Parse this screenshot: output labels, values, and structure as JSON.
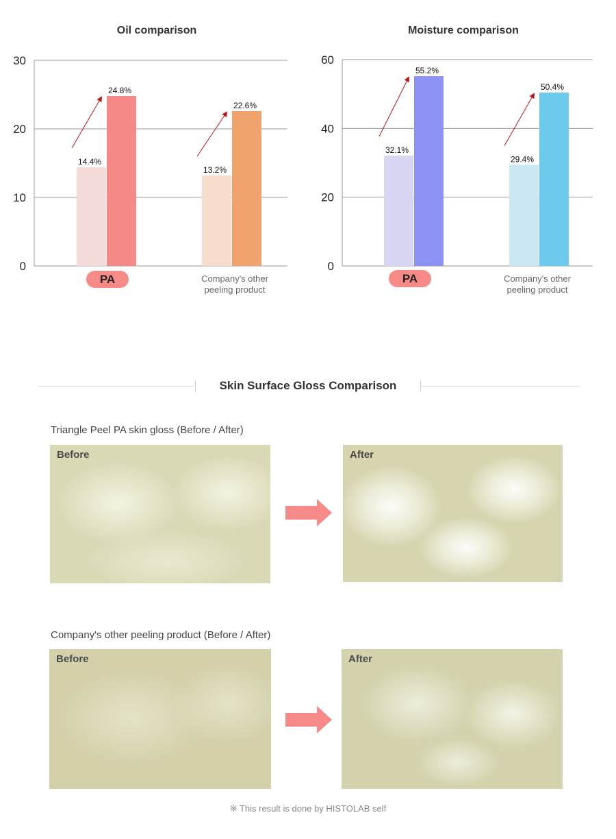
{
  "chart_data": [
    {
      "type": "bar",
      "title": "Oil comparison",
      "categories": [
        "PA",
        "Company's other peeling product"
      ],
      "category_display": [
        [
          "PA"
        ],
        [
          "Company's other",
          "peeling product"
        ]
      ],
      "series": [
        {
          "values": [
            14.4,
            13.2
          ],
          "colors": [
            "#f5dbd8",
            "#f8ddcd"
          ]
        },
        {
          "values": [
            24.8,
            22.6
          ],
          "colors": [
            "#f48a88",
            "#f0a36d"
          ]
        }
      ],
      "value_labels": [
        [
          "14.4%",
          "24.8%"
        ],
        [
          "13.2%",
          "22.6%"
        ]
      ],
      "yticks": [
        0,
        10,
        20,
        30
      ],
      "ylim": [
        0,
        30
      ],
      "grid": true,
      "arrow_color": "#c0141b"
    },
    {
      "type": "bar",
      "title": "Moisture comparison",
      "categories": [
        "PA",
        "Company's other peeling product"
      ],
      "category_display": [
        [
          "PA"
        ],
        [
          "Company's other",
          "peeling product"
        ]
      ],
      "series": [
        {
          "values": [
            32.1,
            29.4
          ],
          "colors": [
            "#d8d6f2",
            "#cce7f4"
          ]
        },
        {
          "values": [
            55.2,
            50.4
          ],
          "colors": [
            "#8b92f2",
            "#6ccaec"
          ]
        }
      ],
      "value_labels": [
        [
          "32.1%",
          "55.2%"
        ],
        [
          "29.4%",
          "50.4%"
        ]
      ],
      "yticks": [
        0,
        20,
        40,
        60
      ],
      "ylim": [
        0,
        60
      ],
      "grid": true,
      "arrow_color": "#c0141b"
    }
  ],
  "gloss": {
    "title": "Skin Surface Gloss Comparison",
    "groups": [
      {
        "title": "Triangle Peel PA skin gloss (Before / After)",
        "before_label": "Before",
        "after_label": "After"
      },
      {
        "title": "Company's other peeling product (Before / After)",
        "before_label": "Before",
        "after_label": "After"
      }
    ]
  },
  "footnote": "※ This result is done by HISTOLAB self",
  "colors": {
    "pill": "#f58a86",
    "arrow": "#f58a88",
    "skin_base": "#dcdcb8"
  }
}
